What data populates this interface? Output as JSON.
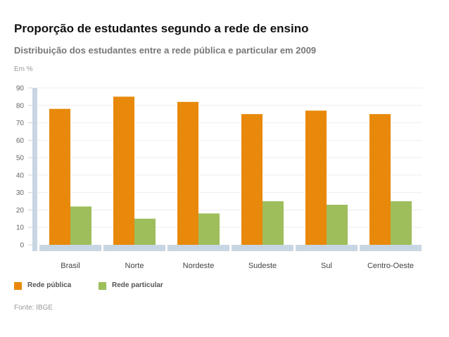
{
  "header": {
    "title": "Proporção de estudantes segundo a rede de ensino",
    "subtitle": "Distribuição dos estudantes entre a rede pública e particular em 2009",
    "unit": "Em %"
  },
  "footer": {
    "source": "Fonte: IBGE"
  },
  "chart_data": {
    "type": "bar",
    "title": "Proporção de estudantes segundo a rede de ensino",
    "subtitle": "Distribuição dos estudantes entre a rede pública e particular em 2009",
    "ylabel": "Em %",
    "xlabel": "",
    "categories": [
      "Brasil",
      "Norte",
      "Nordeste",
      "Sudeste",
      "Sul",
      "Centro-Oeste"
    ],
    "series": [
      {
        "name": "Rede pública",
        "color": "#e8890c",
        "values": [
          78,
          85,
          82,
          75,
          77,
          75
        ]
      },
      {
        "name": "Rede particular",
        "color": "#9dbe5b",
        "values": [
          22,
          15,
          18,
          25,
          23,
          25
        ]
      }
    ],
    "ylim": [
      0,
      90
    ],
    "yticks": [
      0,
      10,
      20,
      30,
      40,
      50,
      60,
      70,
      80,
      90
    ],
    "grid": true,
    "legend": "bottom-left"
  }
}
